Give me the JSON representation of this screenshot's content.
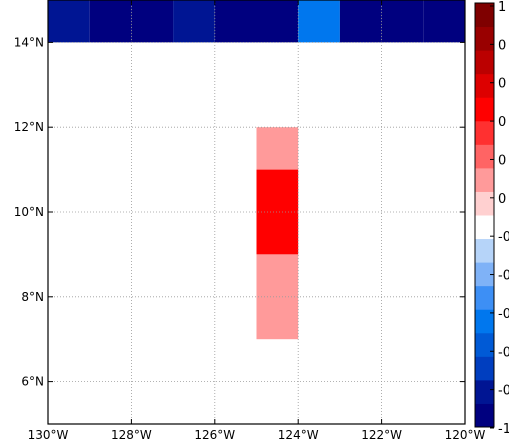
{
  "chart_data": {
    "type": "heatmap",
    "title": "",
    "xlabel": "",
    "ylabel": "",
    "x_axis": {
      "range": [
        -130,
        -120
      ],
      "ticks": [
        -130,
        -128,
        -126,
        -124,
        -122,
        -120
      ],
      "tick_labels": [
        "130°W",
        "128°W",
        "126°W",
        "124°W",
        "122°W",
        "120°W"
      ]
    },
    "y_axis": {
      "range": [
        5,
        15
      ],
      "ticks": [
        6,
        8,
        10,
        12,
        14
      ],
      "tick_labels": [
        "6°N",
        "8°N",
        "10°N",
        "12°N",
        "14°N"
      ]
    },
    "grid": true,
    "cells": [
      {
        "lon": [
          -130,
          -129
        ],
        "lat": [
          14,
          15
        ],
        "value": -0.8
      },
      {
        "lon": [
          -129,
          -128
        ],
        "lat": [
          14,
          15
        ],
        "value": -0.9
      },
      {
        "lon": [
          -128,
          -127
        ],
        "lat": [
          14,
          15
        ],
        "value": -1.0
      },
      {
        "lon": [
          -127,
          -126
        ],
        "lat": [
          14,
          15
        ],
        "value": -0.8
      },
      {
        "lon": [
          -126,
          -125
        ],
        "lat": [
          14,
          15
        ],
        "value": -0.9
      },
      {
        "lon": [
          -125,
          -124
        ],
        "lat": [
          14,
          15
        ],
        "value": -1.0
      },
      {
        "lon": [
          -124,
          -123
        ],
        "lat": [
          14,
          15
        ],
        "value": -0.55
      },
      {
        "lon": [
          -123,
          -122
        ],
        "lat": [
          14,
          15
        ],
        "value": -1.0
      },
      {
        "lon": [
          -122,
          -121
        ],
        "lat": [
          14,
          15
        ],
        "value": -1.0
      },
      {
        "lon": [
          -121,
          -120
        ],
        "lat": [
          14,
          15
        ],
        "value": -1.0
      },
      {
        "lon": [
          -125,
          -124
        ],
        "lat": [
          11,
          12
        ],
        "value": 0.15
      },
      {
        "lon": [
          -125,
          -124
        ],
        "lat": [
          9,
          11
        ],
        "value": 0.45
      },
      {
        "lon": [
          -125,
          -124
        ],
        "lat": [
          7,
          9
        ],
        "value": 0.15
      }
    ],
    "colorbar": {
      "range": [
        -1,
        1
      ],
      "colors": [
        "#00007f",
        "#001593",
        "#003ebf",
        "#005ad6",
        "#0077ee",
        "#3d8ff5",
        "#7fb2f7",
        "#b6d4f9",
        "#ffffff",
        "#ffd0d0",
        "#ff9a9a",
        "#ff6464",
        "#ff3030",
        "#ff0000",
        "#dd0000",
        "#bb0000",
        "#990000",
        "#7f0000"
      ],
      "tick_labels": [
        "1",
        "0",
        "0",
        "0",
        "0",
        "0",
        "-0",
        "-0",
        "-0",
        "-0",
        "-0",
        "-1"
      ]
    }
  }
}
